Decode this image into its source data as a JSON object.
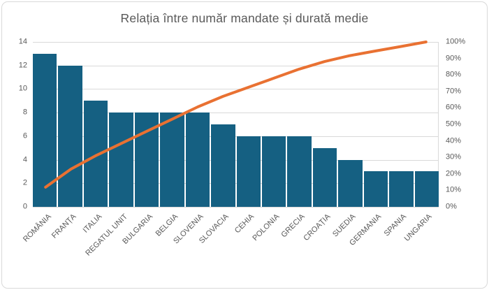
{
  "title": "Relația între număr mandate și durată medie",
  "colors": {
    "bar": "#156082",
    "line": "#E97132",
    "text": "#595959",
    "grid": "#D9D9D9",
    "frame_border": "#D9D9D9",
    "background": "#FFFFFF"
  },
  "chart_data": {
    "type": "bar",
    "subtype": "pareto-with-cumulative-line",
    "title": "Relația între număr mandate și durată medie",
    "categories": [
      "ROMÂNIA",
      "FRANȚA",
      "ITALIA",
      "REGATUL UNIT",
      "BULGARIA",
      "BELGIA",
      "SLOVENIA",
      "SLOVACIA",
      "CEHIA",
      "POLONIA",
      "GRECIA",
      "CROAȚIA",
      "SUEDIA",
      "GERMANIA",
      "SPANIA",
      "UNGARIA"
    ],
    "series": [
      {
        "role": "bars",
        "axis": "left",
        "values": [
          13,
          12,
          9,
          8,
          8,
          8,
          8,
          7,
          6,
          6,
          6,
          5,
          4,
          3,
          3,
          3
        ]
      },
      {
        "role": "cumulative-line",
        "axis": "right",
        "values_pct": [
          11.9,
          22.9,
          31.2,
          38.5,
          45.9,
          53.2,
          60.6,
          67.0,
          72.5,
          78.0,
          83.5,
          88.1,
          91.7,
          94.5,
          97.2,
          100.0
        ]
      }
    ],
    "left_axis": {
      "min": 0,
      "max": 14,
      "step": 2,
      "ticks": [
        "0",
        "2",
        "4",
        "6",
        "8",
        "10",
        "12",
        "14"
      ]
    },
    "right_axis": {
      "min": 0,
      "max": 100,
      "step": 10,
      "ticks": [
        "0%",
        "10%",
        "20%",
        "30%",
        "40%",
        "50%",
        "60%",
        "70%",
        "80%",
        "90%",
        "100%"
      ]
    },
    "grid": true,
    "legend": false
  }
}
